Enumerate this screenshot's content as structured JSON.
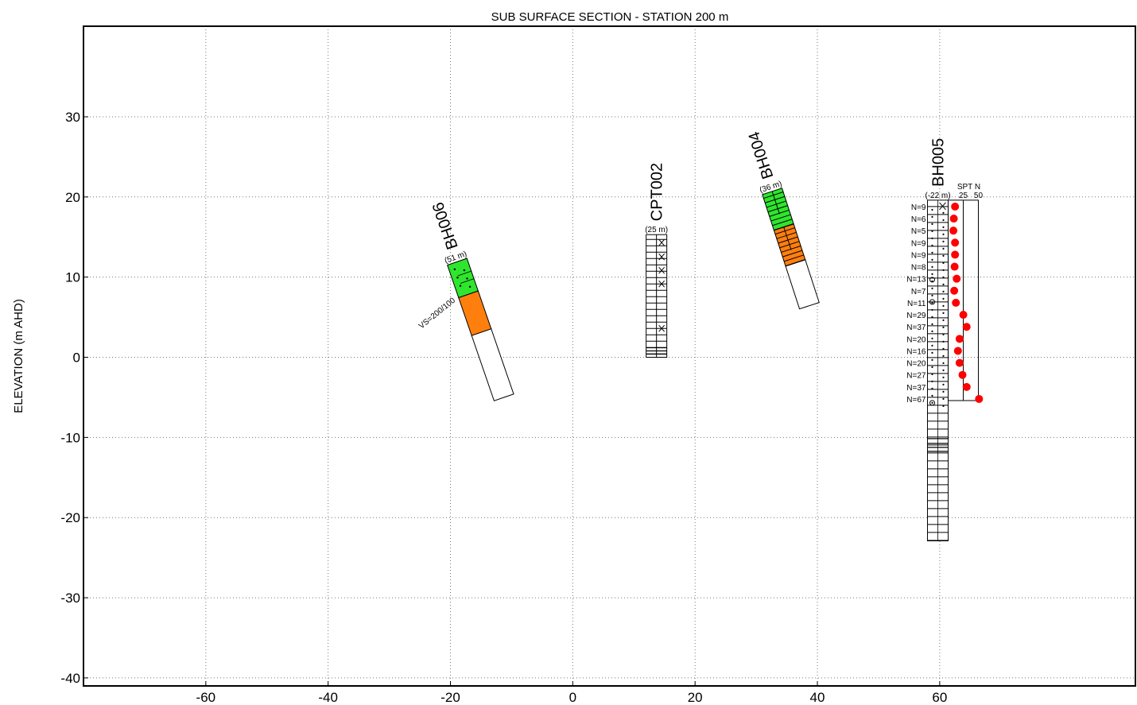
{
  "chart_data": {
    "type": "scatter",
    "title": "SUB SURFACE SECTION - STATION 200 m",
    "ylabel": "ELEVATION (m AHD)",
    "xlabel": "",
    "xlim": [
      -80,
      92
    ],
    "ylim": [
      -41,
      41.3
    ],
    "xticks": [
      -60,
      -40,
      -20,
      0,
      20,
      40,
      60
    ],
    "yticks": [
      30,
      20,
      10,
      0,
      -10,
      -20,
      -30,
      -40
    ],
    "grid": true,
    "colors": {
      "fill_green": "#2ee62e",
      "fill_orange": "#ff7f0e",
      "spt_point": "#ff0000",
      "axis": "#000000",
      "grid": "#777777"
    },
    "boreholes": [
      {
        "name": "BH006",
        "offset_label": "(51 m)",
        "x": -20.5,
        "top": 11.5,
        "length": 17.9,
        "tilt_deg": 19,
        "bands": [
          {
            "from": 0,
            "to": 4.3,
            "fill": "green",
            "pattern": "dots"
          },
          {
            "from": 4.3,
            "to": 9.3,
            "fill": "orange",
            "pattern": "none"
          },
          {
            "from": 9.3,
            "to": 17.9,
            "fill": "none",
            "pattern": "none"
          }
        ],
        "annotation": "VS=200/100"
      },
      {
        "name": "CPT002",
        "offset_label": "(25 m)",
        "x": 12.0,
        "top": 15.3,
        "length": 15.3,
        "tilt_deg": 0,
        "bands": [
          {
            "from": 0,
            "to": 15.3,
            "fill": "none",
            "pattern": "cpt"
          }
        ]
      },
      {
        "name": "BH004",
        "offset_label": "(36 m)",
        "x": 31.0,
        "top": 20.3,
        "length": 15.0,
        "tilt_deg": 18,
        "bands": [
          {
            "from": 0,
            "to": 4.7,
            "fill": "green",
            "pattern": "lines"
          },
          {
            "from": 4.7,
            "to": 9.4,
            "fill": "orange",
            "pattern": "lines"
          },
          {
            "from": 9.4,
            "to": 15.0,
            "fill": "none",
            "pattern": "none"
          }
        ]
      },
      {
        "name": "BH005",
        "offset_label": "(-22 m)",
        "x": 58.0,
        "top": 19.6,
        "length": 42.5,
        "tilt_deg": 0,
        "bands": [
          {
            "from": 0,
            "to": 42.5,
            "fill": "none",
            "pattern": "log"
          }
        ]
      }
    ],
    "spt": {
      "borehole": "BH005",
      "header": "SPT N",
      "scale_labels": [
        "25",
        "50"
      ],
      "points": [
        {
          "label": "N=9",
          "elev": 18.8,
          "n": 9
        },
        {
          "label": "N=6",
          "elev": 17.3,
          "n": 6
        },
        {
          "label": "N=5",
          "elev": 15.8,
          "n": 5
        },
        {
          "label": "N=9",
          "elev": 14.3,
          "n": 9
        },
        {
          "label": "N=9",
          "elev": 12.8,
          "n": 9
        },
        {
          "label": "N=8",
          "elev": 11.3,
          "n": 8
        },
        {
          "label": "N=13",
          "elev": 9.8,
          "n": 13
        },
        {
          "label": "N=7",
          "elev": 8.3,
          "n": 7
        },
        {
          "label": "N=11",
          "elev": 6.8,
          "n": 11
        },
        {
          "label": "N=29",
          "elev": 5.3,
          "n": 29
        },
        {
          "label": "N=37",
          "elev": 3.8,
          "n": 37
        },
        {
          "label": "N=20",
          "elev": 2.3,
          "n": 20
        },
        {
          "label": "N=16",
          "elev": 0.8,
          "n": 16
        },
        {
          "label": "N=20",
          "elev": -0.7,
          "n": 20
        },
        {
          "label": "N=27",
          "elev": -2.2,
          "n": 27
        },
        {
          "label": "N=37",
          "elev": -3.7,
          "n": 37
        },
        {
          "label": "N=67",
          "elev": -5.2,
          "n": 67
        }
      ]
    }
  }
}
